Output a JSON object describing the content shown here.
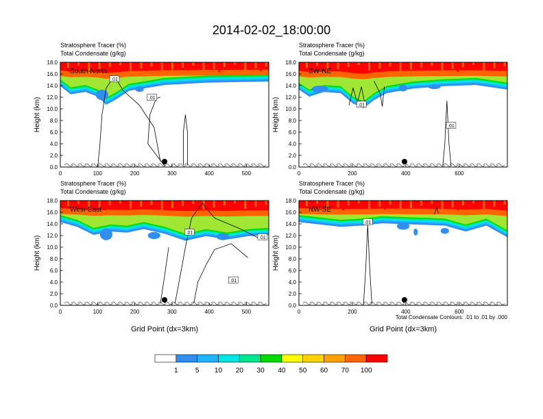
{
  "title": "2014-02-02_18:00:00",
  "panel_title_line1": "Stratosphere Tracer   (%)",
  "panel_title_line2": "Total Condensate   (g/kg)",
  "ylabel": "Height (km)",
  "xlabel": "Grid Point (dx=3km)",
  "contour_note": "Total Condensate Contours: .01 to .01 by .000",
  "contour_label": ".01",
  "colorbar": {
    "levels": [
      "1",
      "5",
      "10",
      "20",
      "30",
      "40",
      "50",
      "60",
      "70",
      "100"
    ],
    "colors": [
      "#ffffff",
      "#2f8ff0",
      "#1eb4ff",
      "#00e6e6",
      "#00e68c",
      "#00dc00",
      "#a0e632",
      "#ffff00",
      "#ffd200",
      "#ffa000",
      "#ff6400",
      "#ff0000"
    ]
  },
  "chart_data": [
    {
      "type": "contour",
      "panel": "South-North",
      "x_ticks": [
        "0",
        "100",
        "200",
        "300",
        "400",
        "500"
      ],
      "xlim": [
        0,
        560
      ],
      "y_ticks": [
        "0.0",
        "2.0",
        "4.0",
        "6.0",
        "8.0",
        "10.0",
        "12.0",
        "14.0",
        "16.0",
        "18.0"
      ],
      "ylim": [
        0,
        18
      ],
      "marker_x": 280
    },
    {
      "type": "contour",
      "panel": "SW-NE",
      "x_ticks": [
        "0",
        "200",
        "400",
        "600"
      ],
      "xlim": [
        0,
        780
      ],
      "y_ticks": [
        "0.0",
        "2.0",
        "4.0",
        "6.0",
        "8.0",
        "10.0",
        "12.0",
        "14.0",
        "16.0",
        "18.0"
      ],
      "ylim": [
        0,
        18
      ],
      "marker_x": 395
    },
    {
      "type": "contour",
      "panel": "West-East",
      "x_ticks": [
        "0",
        "100",
        "200",
        "300",
        "400",
        "500"
      ],
      "xlim": [
        0,
        560
      ],
      "y_ticks": [
        "0.0",
        "2.0",
        "4.0",
        "6.0",
        "8.0",
        "10.0",
        "12.0",
        "14.0",
        "16.0",
        "18.0"
      ],
      "ylim": [
        0,
        18
      ],
      "marker_x": 280
    },
    {
      "type": "contour",
      "panel": "NW-SE",
      "x_ticks": [
        "0",
        "200",
        "400",
        "600"
      ],
      "xlim": [
        0,
        780
      ],
      "y_ticks": [
        "0.0",
        "2.0",
        "4.0",
        "6.0",
        "8.0",
        "10.0",
        "12.0",
        "14.0",
        "16.0",
        "18.0"
      ],
      "ylim": [
        0,
        18
      ],
      "marker_x": 395
    }
  ]
}
